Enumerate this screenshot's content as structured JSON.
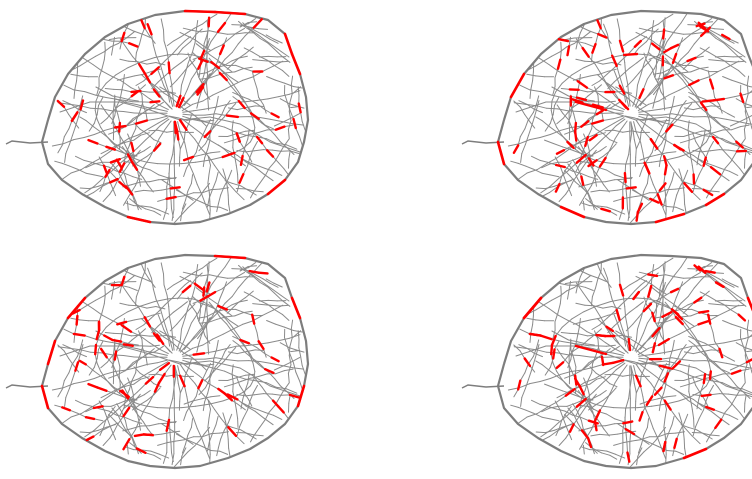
{
  "figure": {
    "panels": [
      {
        "position": "top-left",
        "highlight_seed": 3,
        "highlight_count": 70
      },
      {
        "position": "top-right",
        "highlight_seed": 11,
        "highlight_count": 85
      },
      {
        "position": "bottom-left",
        "highlight_seed": 23,
        "highlight_count": 65
      },
      {
        "position": "bottom-right",
        "highlight_seed": 37,
        "highlight_count": 80
      }
    ],
    "colors": {
      "network": "#8a8a8a",
      "ring_road": "#7d7d7d",
      "highlight": "#ff0000",
      "background": "#ffffff"
    }
  }
}
